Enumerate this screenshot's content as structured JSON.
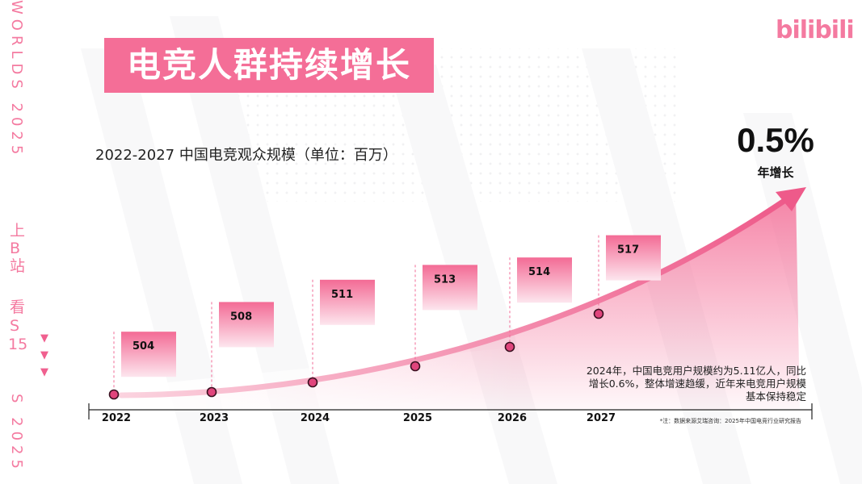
{
  "title": "电竞人群持续增长",
  "logo": "bilibili",
  "side": {
    "top_text": "WORLDS 2025",
    "bottom_text": "S 2025",
    "cn_chars": [
      "上",
      "B",
      "站",
      "看",
      "S",
      "15"
    ]
  },
  "growth": {
    "value": "0.5%",
    "label": "年增长"
  },
  "note_lines": [
    "2024年，中国电竞用户规模约为5.11亿人，同比",
    "增长0.6%，整体增速趋缓，近年来电竞用户规模",
    "基本保持稳定"
  ],
  "source": "*注：数据来源艾瑞咨询：2025年中国电竞行业研究报告",
  "colors": {
    "accent": "#f46e97",
    "arrow": "#ee5a8a",
    "marker": "#e0457c"
  },
  "chart_data": {
    "type": "line",
    "title": "2022-2027 中国电竞观众规模（单位：百万）",
    "categories": [
      "2022",
      "2023",
      "2024",
      "2025",
      "2026",
      "2027"
    ],
    "values": [
      504,
      508,
      511,
      513,
      514,
      517
    ],
    "value_labels": [
      "504",
      "508",
      "511",
      "513",
      "514",
      "517"
    ],
    "xlabel": "",
    "ylabel": "",
    "legend": "none",
    "grid": false
  }
}
